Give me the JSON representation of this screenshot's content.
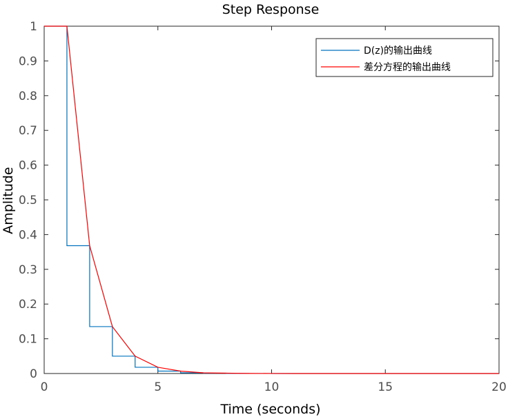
{
  "chart_data": {
    "type": "line",
    "title": "Step Response",
    "xlabel": "Time (seconds)",
    "ylabel": "Amplitude",
    "xlim": [
      0,
      20
    ],
    "ylim": [
      0,
      1
    ],
    "xticks": [
      0,
      5,
      10,
      15,
      20
    ],
    "xtick_labels": [
      "0",
      "5",
      "10",
      "15",
      "20"
    ],
    "yticks": [
      0,
      0.1,
      0.2,
      0.3,
      0.4,
      0.5,
      0.6,
      0.7,
      0.8,
      0.9,
      1
    ],
    "ytick_labels": [
      "0",
      "0.1",
      "0.2",
      "0.3",
      "0.4",
      "0.5",
      "0.6",
      "0.7",
      "0.8",
      "0.9",
      "1"
    ],
    "grid": false,
    "legend_position": "top-right",
    "series": [
      {
        "name": "D(z)的输出曲线",
        "style": "step",
        "color": "#0072BD",
        "x": [
          0,
          1,
          2,
          3,
          4,
          5,
          6,
          7,
          8,
          9,
          10,
          11,
          12,
          13,
          14,
          15,
          16,
          17,
          18,
          19,
          20
        ],
        "y": [
          1,
          0.368,
          0.135,
          0.05,
          0.018,
          0.007,
          0.002,
          0.001,
          0.0003,
          0.0001,
          0,
          0,
          0,
          0,
          0,
          0,
          0,
          0,
          0,
          0,
          0
        ]
      },
      {
        "name": "差分方程的输出曲线",
        "style": "line",
        "color": "#FF0000",
        "x": [
          0,
          1,
          2,
          3,
          4,
          5,
          6,
          7,
          8,
          9,
          10,
          11,
          12,
          13,
          14,
          15,
          16,
          17,
          18,
          19,
          20
        ],
        "y": [
          1,
          1,
          0.368,
          0.135,
          0.05,
          0.018,
          0.007,
          0.002,
          0.001,
          0.0003,
          0.0001,
          0,
          0,
          0,
          0,
          0,
          0,
          0,
          0,
          0,
          0
        ]
      }
    ]
  }
}
